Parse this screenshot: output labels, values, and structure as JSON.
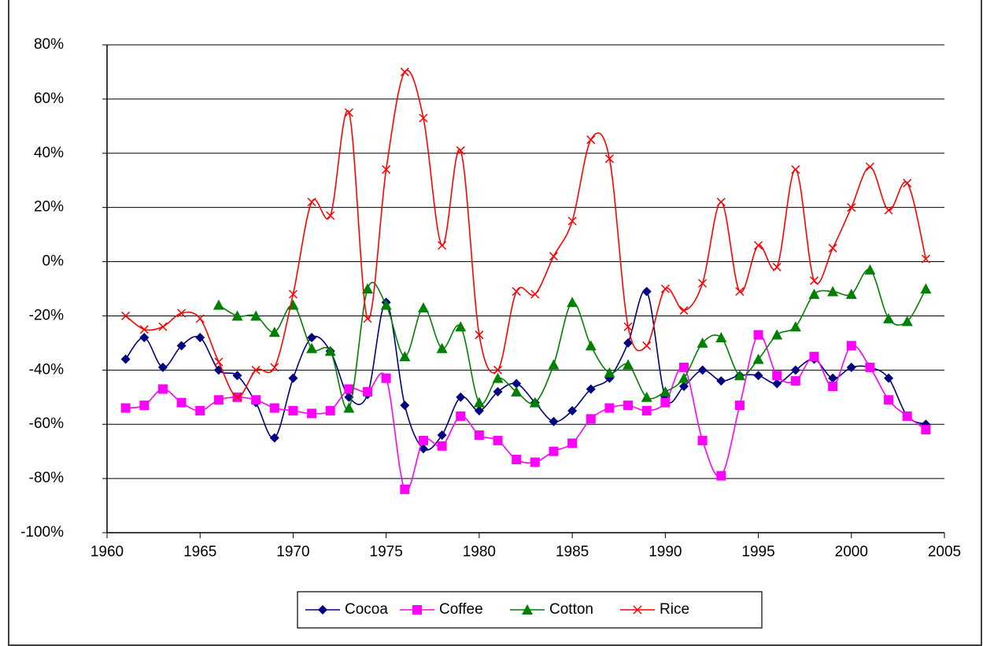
{
  "chart_data": {
    "type": "line",
    "x": [
      1961,
      1962,
      1963,
      1964,
      1965,
      1966,
      1967,
      1968,
      1969,
      1970,
      1971,
      1972,
      1973,
      1974,
      1975,
      1976,
      1977,
      1978,
      1979,
      1980,
      1981,
      1982,
      1983,
      1984,
      1985,
      1986,
      1987,
      1988,
      1989,
      1990,
      1991,
      1992,
      1993,
      1994,
      1995,
      1996,
      1997,
      1998,
      1999,
      2000,
      2001,
      2002,
      2003,
      2004
    ],
    "series": [
      {
        "name": "Cocoa",
        "color": "#000080",
        "marker": "diamond",
        "values": [
          -36,
          -28,
          -39,
          -31,
          -28,
          -40,
          -42,
          -52,
          -65,
          -43,
          -28,
          -33,
          -50,
          -49,
          -15,
          -53,
          -69,
          -64,
          -50,
          -55,
          -48,
          -45,
          -52,
          -59,
          -55,
          -47,
          -43,
          -30,
          -11,
          -50,
          -46,
          -40,
          -44,
          -42,
          -42,
          -45,
          -40,
          -36,
          -43,
          -39,
          -39,
          -43,
          -57,
          -60
        ]
      },
      {
        "name": "Coffee",
        "color": "#ff00ff",
        "marker": "square",
        "values": [
          -54,
          -53,
          -47,
          -52,
          -55,
          -51,
          -50,
          -51,
          -54,
          -55,
          -56,
          -55,
          -47,
          -48,
          -43,
          -84,
          -66,
          -68,
          -57,
          -64,
          -66,
          -73,
          -74,
          -70,
          -67,
          -58,
          -54,
          -53,
          -55,
          -52,
          -39,
          -66,
          -79,
          -53,
          -27,
          -42,
          -44,
          -35,
          -46,
          -31,
          -39,
          -51,
          -57,
          -62
        ]
      },
      {
        "name": "Cotton",
        "color": "#008000",
        "marker": "triangle",
        "values": [
          null,
          null,
          null,
          null,
          null,
          -16,
          -20,
          -20,
          -26,
          -16,
          -32,
          -33,
          -54,
          -10,
          -16,
          -35,
          -17,
          -32,
          -24,
          -52,
          -43,
          -48,
          -52,
          -38,
          -15,
          -31,
          -41,
          -38,
          -50,
          -48,
          -43,
          -30,
          -28,
          -42,
          -36,
          -27,
          -24,
          -12,
          -11,
          -12,
          -3,
          -21,
          -22,
          -10
        ]
      },
      {
        "name": "Rice",
        "color": "#ff0000",
        "marker": "x",
        "values": [
          -20,
          -25,
          -24,
          -19,
          -21,
          -37,
          -50,
          -40,
          -39,
          -12,
          22,
          17,
          55,
          -21,
          34,
          70,
          53,
          6,
          41,
          -27,
          -40,
          -11,
          -12,
          2,
          15,
          45,
          38,
          -24,
          -31,
          -10,
          -18,
          -8,
          22,
          -11,
          6,
          -2,
          34,
          -7,
          5,
          20,
          35,
          19,
          29,
          1
        ]
      }
    ],
    "xlim": [
      1960,
      2005
    ],
    "xticks": [
      1960,
      1965,
      1970,
      1975,
      1980,
      1985,
      1990,
      1995,
      2000,
      2005
    ],
    "ylim": [
      -100,
      80
    ],
    "yticks": [
      {
        "value": -100,
        "label": "-100%"
      },
      {
        "value": -80,
        "label": "-80%"
      },
      {
        "value": -60,
        "label": "-60%"
      },
      {
        "value": -40,
        "label": "-40%"
      },
      {
        "value": -20,
        "label": "-20%"
      },
      {
        "value": 0,
        "label": "0%"
      },
      {
        "value": 20,
        "label": "20%"
      },
      {
        "value": 40,
        "label": "40%"
      },
      {
        "value": 60,
        "label": "60%"
      },
      {
        "value": 80,
        "label": "80%"
      }
    ],
    "grid": true,
    "smooth": true,
    "legend": "bottom"
  }
}
